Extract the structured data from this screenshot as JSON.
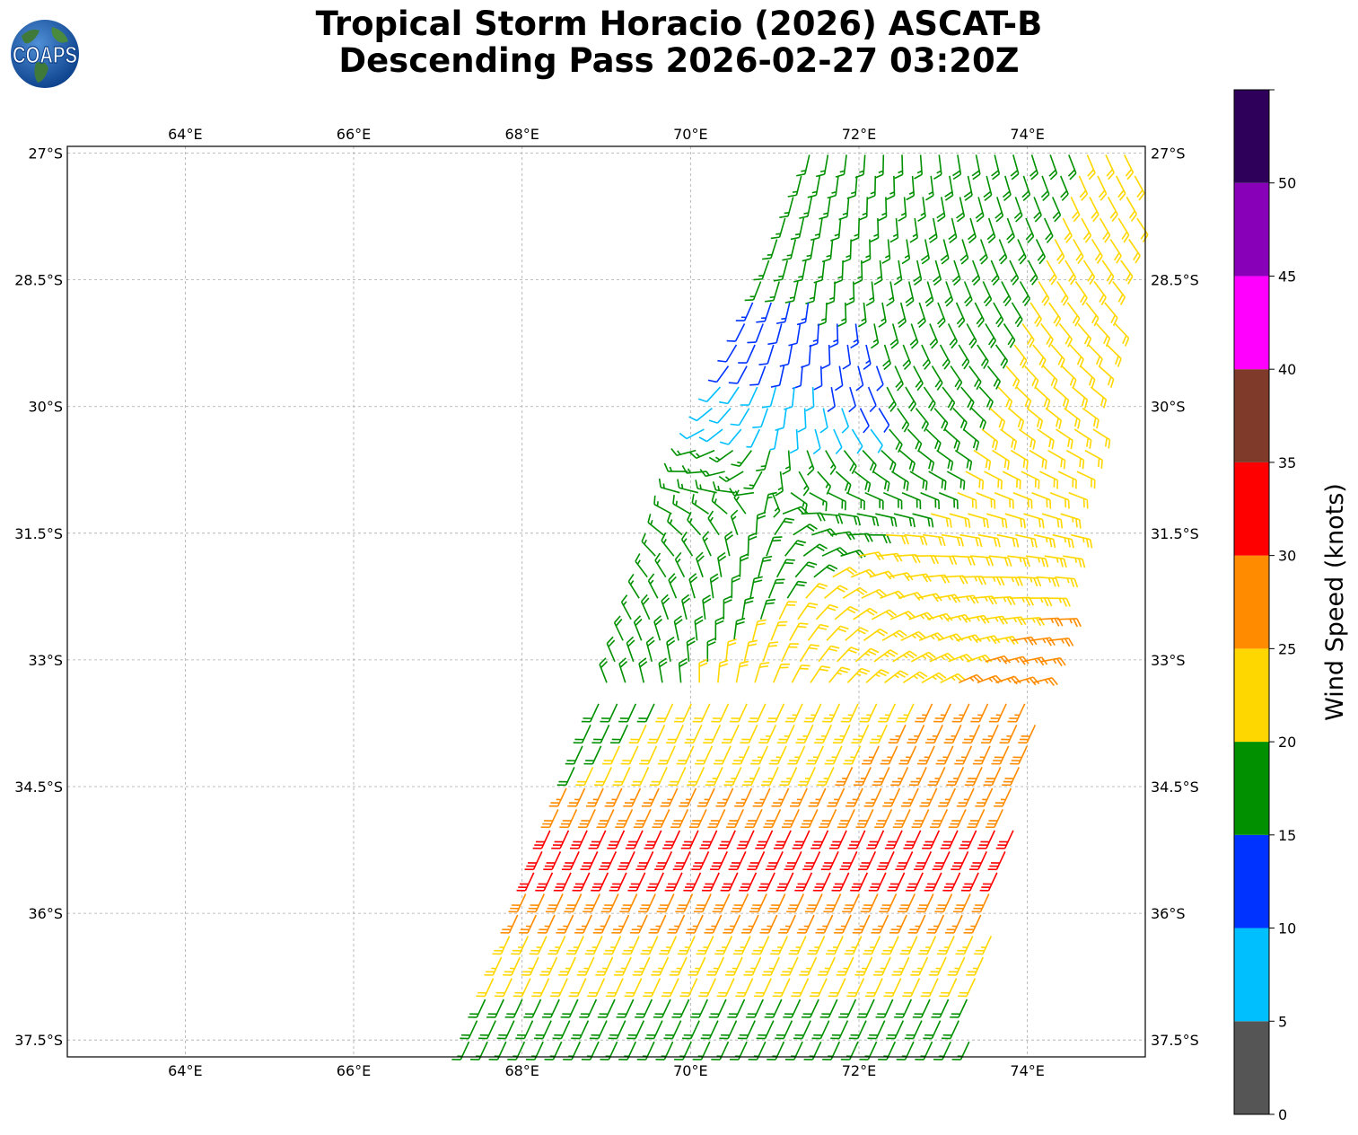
{
  "header": {
    "title_line1": "Tropical Storm Horacio (2026) ASCAT-B",
    "title_line2": "Descending Pass 2026-02-27 03:20Z",
    "logo_text": "COAPS"
  },
  "map": {
    "lon_range": [
      62.6,
      75.4
    ],
    "lat_range": [
      -37.7,
      -26.92
    ],
    "lon_ticks": [
      64,
      66,
      68,
      70,
      72,
      74
    ],
    "lon_tick_labels": [
      "64°E",
      "66°E",
      "68°E",
      "70°E",
      "72°E",
      "74°E"
    ],
    "lat_ticks": [
      -27,
      -28.5,
      -30,
      -31.5,
      -33,
      -34.5,
      -36,
      -37.5
    ],
    "lat_tick_labels": [
      "27°S",
      "28.5°S",
      "30°S",
      "31.5°S",
      "33°S",
      "34.5°S",
      "36°S",
      "37.5°S"
    ],
    "grid": true,
    "swath": {
      "lat_min": -37.7,
      "lat_max": -26.92,
      "west_edge_lon_at_lat_max": 71.45,
      "west_edge_lon_at_lat_min": 67.3,
      "east_edge_lon_at_lat_max": 75.5,
      "east_edge_lon_at_lat_min": 73.3
    }
  },
  "colorbar": {
    "label": "Wind Speed (knots)",
    "bounds": [
      0,
      5,
      10,
      15,
      20,
      25,
      30,
      35,
      40,
      45,
      50,
      55
    ],
    "tick_labels": [
      "0",
      "5",
      "10",
      "15",
      "20",
      "25",
      "30",
      "35",
      "40",
      "45",
      "50"
    ],
    "colors": [
      "#555555",
      "#00bfff",
      "#0033ff",
      "#009000",
      "#ffd700",
      "#ff8c00",
      "#ff0000",
      "#7f3a2a",
      "#ff00ff",
      "#8800b8",
      "#2e0059"
    ]
  }
}
